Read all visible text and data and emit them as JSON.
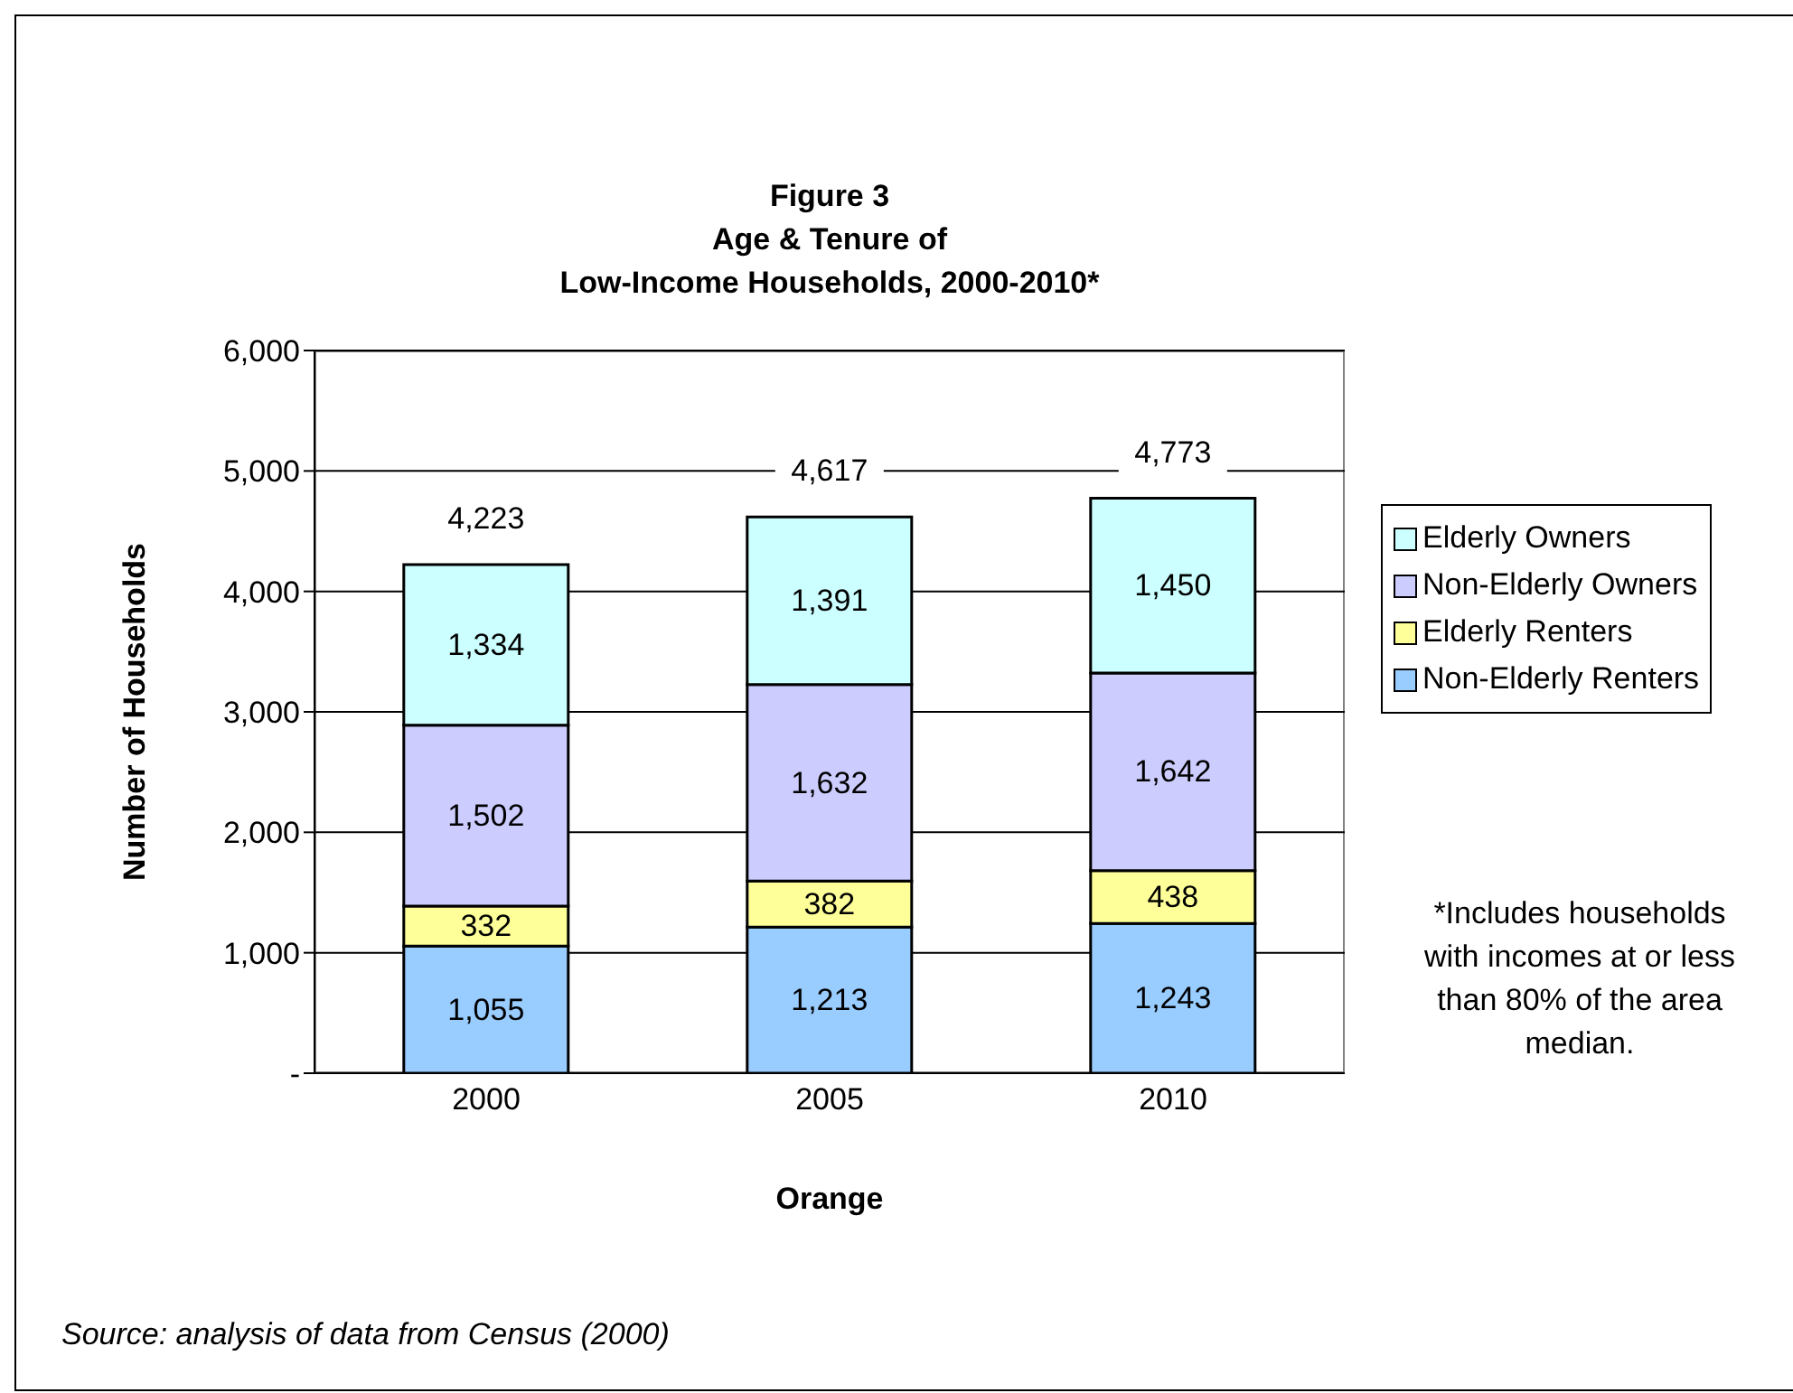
{
  "chart_data": {
    "type": "bar",
    "title": "Figure 3\nAge & Tenure of\nLow-Income Households, 2000-2010*",
    "xlabel": "Orange",
    "ylabel": "Number of Households",
    "categories": [
      "2000",
      "2005",
      "2010"
    ],
    "series": [
      {
        "name": "Non-Elderly Renters",
        "color": "#99ccff",
        "values": [
          1055,
          1213,
          1243
        ],
        "value_labels": [
          "1,055",
          "1,213",
          "1,243"
        ]
      },
      {
        "name": "Elderly Renters",
        "color": "#ffff99",
        "values": [
          332,
          382,
          438
        ],
        "value_labels": [
          "332",
          "382",
          "438"
        ]
      },
      {
        "name": "Non-Elderly Owners",
        "color": "#ccccff",
        "values": [
          1502,
          1632,
          1642
        ],
        "value_labels": [
          "1,502",
          "1,632",
          "1,642"
        ]
      },
      {
        "name": "Elderly Owners",
        "color": "#ccffff",
        "values": [
          1334,
          1391,
          1450
        ],
        "value_labels": [
          "1,334",
          "1,391",
          "1,450"
        ]
      }
    ],
    "stacked": true,
    "totals": [
      "4,223",
      "4,617",
      "4,773"
    ],
    "ylim": [
      0,
      6000
    ],
    "yticks": [
      {
        "value": 0,
        "label": "-"
      },
      {
        "value": 1000,
        "label": "1,000"
      },
      {
        "value": 2000,
        "label": "2,000"
      },
      {
        "value": 3000,
        "label": "3,000"
      },
      {
        "value": 4000,
        "label": "4,000"
      },
      {
        "value": 5000,
        "label": "5,000"
      },
      {
        "value": 6000,
        "label": "6,000"
      }
    ],
    "grid": "y",
    "legend": "right",
    "annotations": [
      "*Includes households with incomes at or less than 80% of the area median.",
      "Source:  analysis of data from Census (2000)"
    ]
  }
}
